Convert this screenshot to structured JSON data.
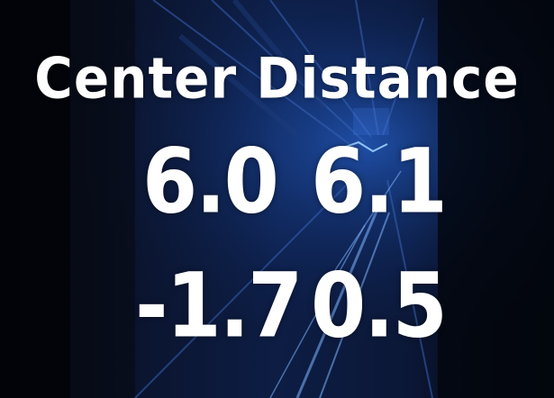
{
  "title": "Center Distance",
  "values": {
    "row1": {
      "left": "6.0",
      "right": "6.1"
    },
    "row2": {
      "left": "-1.7",
      "right": "0.5"
    }
  },
  "colors": {
    "text": "#ffffff",
    "background": "#04070f",
    "accent": "#2f7bff"
  }
}
